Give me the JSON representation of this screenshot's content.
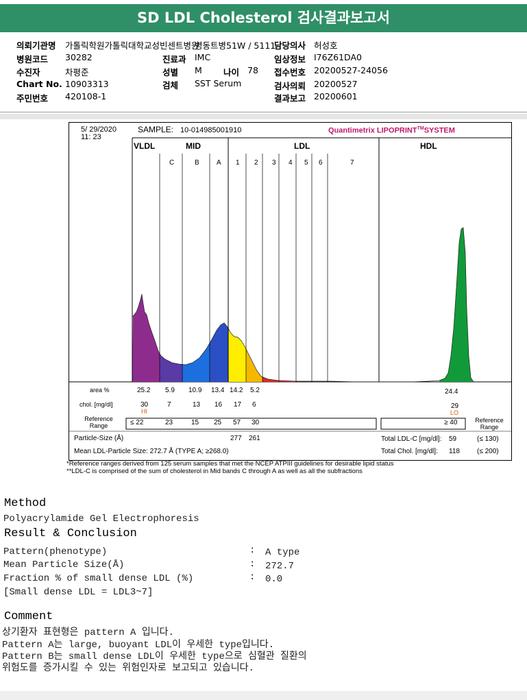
{
  "title": "SD LDL Cholesterol 검사결과보고서",
  "info": {
    "col1": [
      {
        "k": "의뢰기관명",
        "v": "가톨릭학원가톨릭대학교성빈센트병원"
      },
      {
        "k": "병원코드",
        "v": "30282"
      },
      {
        "k": "수진자",
        "v": "차평준"
      },
      {
        "k": "Chart No.",
        "v": "10903313"
      },
      {
        "k": "주민번호",
        "v": "420108-1"
      }
    ],
    "ward": "병동트병51W / 5111",
    "col2": [
      {
        "k": "진료과",
        "v": "IMC"
      },
      {
        "k": "성별",
        "v": "M"
      },
      {
        "k": "검체",
        "v": "SST Serum"
      }
    ],
    "age_label": "나이",
    "age": "78",
    "col3": [
      {
        "k": "담당의사",
        "v": "허성호"
      },
      {
        "k": "임상정보",
        "v": "I76Z61DA0"
      },
      {
        "k": "접수번호",
        "v": "20200527-24056"
      },
      {
        "k": "검사의뢰",
        "v": "20200527"
      },
      {
        "k": "결과보고",
        "v": "20200601"
      }
    ]
  },
  "chart": {
    "date": "5/ 29/2020",
    "time": "11: 23",
    "sample_label": "SAMPLE:",
    "sample_id": "10-014985001910",
    "brand": "Quantimetrix LIPOPRINT",
    "brand_tm": "TM",
    "brand_tail": "SYSTEM",
    "brand_color": "#c0186a",
    "headers": {
      "vldl": "VLDL",
      "mid": "MID",
      "ldl": "LDL",
      "hdl": "HDL"
    },
    "subbands": [
      "C",
      "B",
      "A",
      "1",
      "2",
      "3",
      "4",
      "5",
      "6",
      "7"
    ],
    "row_labels": {
      "area": "area %",
      "chol": "chol. [mg/dl]",
      "ref": "Reference Range",
      "ref_right": "Reference Range"
    },
    "area": [
      "25.2",
      "5.9",
      "10.9",
      "13.4",
      "14.2",
      "5.2"
    ],
    "area_hdl": "24.4",
    "chol": [
      "30",
      "7",
      "13",
      "16",
      "17",
      "6"
    ],
    "chol_flag": "HI",
    "chol_hdl": "29",
    "chol_hdl_flag": "LO",
    "ref": [
      "≤ 22",
      "23",
      "15",
      "25",
      "57",
      "30"
    ],
    "ref_hdl": "≥ 40",
    "particle_size_label": "Particle-Size (Å)",
    "particle_sizes": [
      "277",
      "261"
    ],
    "mean_label": "Mean LDL-Particle Size:",
    "mean_value": "272.7 Å",
    "mean_type": "(TYPE A; ≥268.0)",
    "total_ldl_label": "Total LDL-C [mg/dl]:",
    "total_ldl": "59",
    "total_ldl_ref": "(≤ 130)",
    "total_chol_label": "Total Chol. [mg/dl]:",
    "total_chol": "118",
    "total_chol_ref": "(≤ 200)"
  },
  "footnotes": [
    "*Reference ranges derived from 125 serum samples that met the NCEP ATPIII guidelines for desirable lipid status",
    "**LDL-C is comprised of the sum of cholesterol in Mid bands C through A as well as all the subfractions"
  ],
  "method": {
    "heading": "Method",
    "text": "Polyacrylamide Gel Electrophoresis"
  },
  "result": {
    "heading": "Result & Conclusion",
    "rows": [
      {
        "label": "Pattern(phenotype)",
        "value": "A type"
      },
      {
        "label": "Mean Particle Size(Å)",
        "value": "272.7"
      },
      {
        "label": "Fraction % of small dense LDL (%)",
        "value": "0.0"
      }
    ],
    "note": "[Small dense LDL = LDL3~7]"
  },
  "comment": {
    "heading": "Comment",
    "lines": [
      "상기환자 표현형은 pattern A 입니다.",
      "Pattern A는 large, buoyant LDL이 우세한 type입니다.",
      "Pattern B는 small dense LDL이 우세한 type으로 심혈관 질환의",
      "위험도를 증가시킬 수 있는 위험인자로 보고되고 있습니다."
    ]
  },
  "colors": {
    "title_bg": "#2f8f67",
    "vldl": "#8e2c8e",
    "midc": "#5a3aa6",
    "midb": "#1d6fe0",
    "mida": "#2b4fc4",
    "ldl1": "#ffee00",
    "ldl2": "#f5b800",
    "ldl3": "#e0282a",
    "hdl": "#119a3a"
  }
}
